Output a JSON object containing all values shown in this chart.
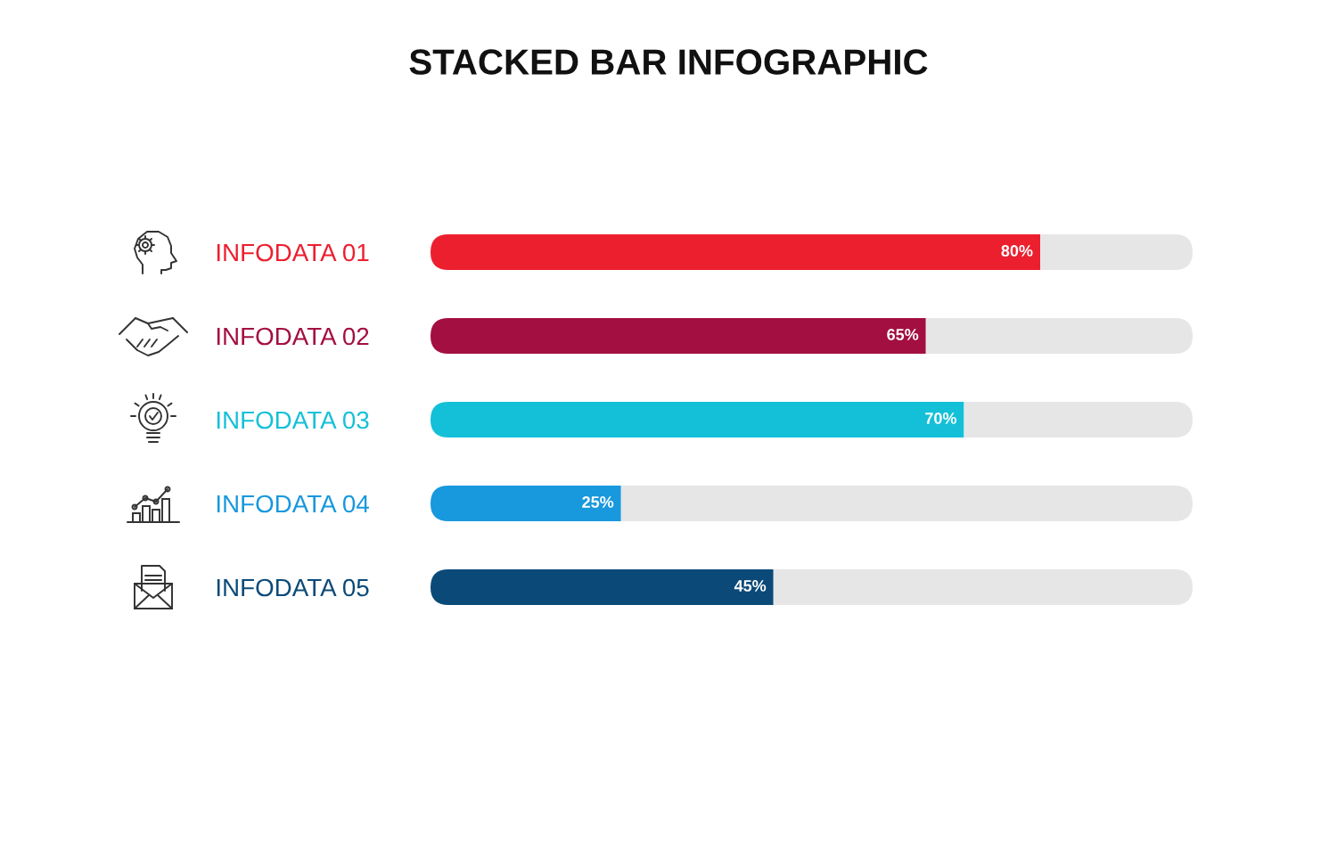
{
  "chart_data": {
    "type": "bar",
    "title": "STACKED BAR INFOGRAPHIC",
    "orientation": "horizontal",
    "stacked": true,
    "categories": [
      "INFODATA 01",
      "INFODATA 02",
      "INFODATA 03",
      "INFODATA 04",
      "INFODATA 05"
    ],
    "series": [
      {
        "colors": [
          "#ec1f2f",
          "#a30f40",
          "#14c0d8",
          "#1898dd",
          "#0b4a78"
        ],
        "values": [
          80,
          65,
          70,
          25,
          45
        ],
        "value_labels": [
          "80%",
          "65%",
          "70%",
          "25%",
          "45%"
        ]
      },
      {
        "color": "#e6e6e6",
        "values": [
          20,
          35,
          30,
          75,
          55
        ]
      }
    ],
    "xlim": [
      0,
      100
    ],
    "tick_labels": "y"
  }
}
